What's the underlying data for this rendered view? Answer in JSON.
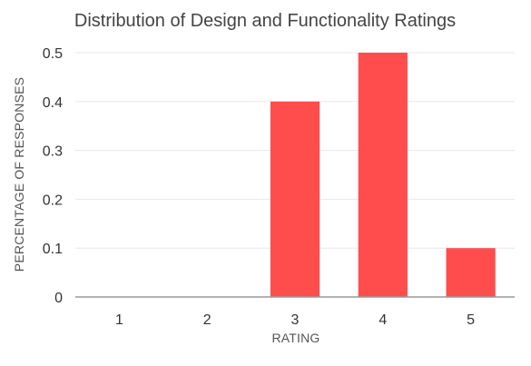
{
  "chart_data": {
    "type": "bar",
    "title": "Distribution of Design and Functionality Ratings",
    "xlabel": "RATING",
    "ylabel": "PERCENTAGE OF RESPONSES",
    "categories": [
      "1",
      "2",
      "3",
      "4",
      "5"
    ],
    "values": [
      0,
      0,
      0.4,
      0.5,
      0.1
    ],
    "ylim": [
      0,
      0.5
    ],
    "yticks": [
      "0",
      "0.1",
      "0.2",
      "0.3",
      "0.4",
      "0.5"
    ],
    "grid": true,
    "bar_color": "#ff4d4d"
  }
}
